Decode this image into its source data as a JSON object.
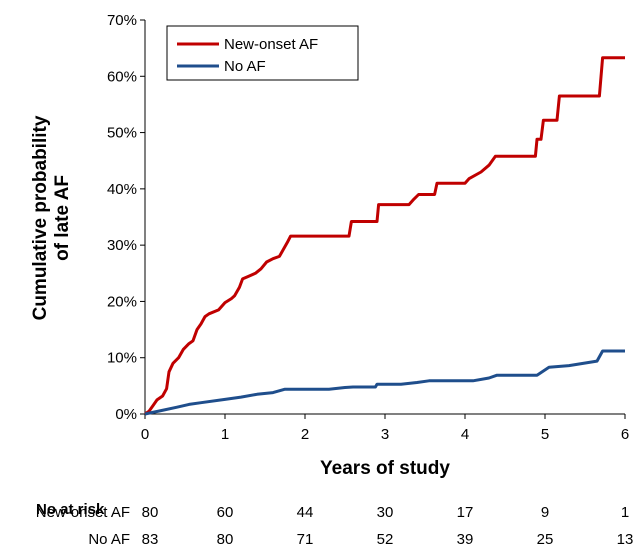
{
  "chart_data": {
    "type": "line",
    "title": "",
    "xlabel": "Years of study",
    "ylabel": "Cumulative probability of late AF",
    "ylabel_lines": [
      "Cumulative probability",
      "of late AF"
    ],
    "xlim": [
      0,
      6
    ],
    "ylim": [
      0,
      70
    ],
    "xticks": [
      "0",
      "1",
      "2",
      "3",
      "4",
      "5",
      "6"
    ],
    "yticks": [
      "0%",
      "10%",
      "20%",
      "30%",
      "40%",
      "50%",
      "60%",
      "70%"
    ],
    "grid": false,
    "legend_position": "top-left",
    "series": [
      {
        "name": "New-onset AF",
        "color": "#c00000",
        "step": true,
        "points": [
          [
            0,
            0
          ],
          [
            0.05,
            0.5
          ],
          [
            0.1,
            1.5
          ],
          [
            0.15,
            2.5
          ],
          [
            0.22,
            3.2
          ],
          [
            0.27,
            4.5
          ],
          [
            0.3,
            7.5
          ],
          [
            0.35,
            9
          ],
          [
            0.42,
            10
          ],
          [
            0.48,
            11.5
          ],
          [
            0.55,
            12.5
          ],
          [
            0.6,
            13
          ],
          [
            0.65,
            15
          ],
          [
            0.7,
            16
          ],
          [
            0.75,
            17.3
          ],
          [
            0.8,
            17.8
          ],
          [
            0.92,
            18.5
          ],
          [
            1.0,
            19.8
          ],
          [
            1.08,
            20.5
          ],
          [
            1.12,
            21
          ],
          [
            1.18,
            22.5
          ],
          [
            1.22,
            24
          ],
          [
            1.3,
            24.5
          ],
          [
            1.38,
            25
          ],
          [
            1.45,
            25.8
          ],
          [
            1.52,
            27
          ],
          [
            1.6,
            27.6
          ],
          [
            1.68,
            28
          ],
          [
            1.72,
            29
          ],
          [
            1.78,
            30.5
          ],
          [
            1.82,
            31.6
          ],
          [
            2.55,
            31.6
          ],
          [
            2.58,
            34.2
          ],
          [
            2.9,
            34.2
          ],
          [
            2.92,
            37.2
          ],
          [
            3.3,
            37.2
          ],
          [
            3.35,
            38
          ],
          [
            3.42,
            39
          ],
          [
            3.62,
            39
          ],
          [
            3.65,
            41
          ],
          [
            4.0,
            41
          ],
          [
            4.05,
            41.8
          ],
          [
            4.2,
            43
          ],
          [
            4.3,
            44.2
          ],
          [
            4.38,
            45.8
          ],
          [
            4.88,
            45.8
          ],
          [
            4.9,
            48.8
          ],
          [
            4.95,
            48.8
          ],
          [
            4.98,
            52.2
          ],
          [
            5.15,
            52.2
          ],
          [
            5.18,
            56.5
          ],
          [
            5.68,
            56.5
          ],
          [
            5.72,
            63.3
          ],
          [
            6.0,
            63.3
          ]
        ]
      },
      {
        "name": "No AF",
        "color": "#1f4e8c",
        "step": true,
        "points": [
          [
            0,
            0
          ],
          [
            0.2,
            0.6
          ],
          [
            0.4,
            1.2
          ],
          [
            0.55,
            1.7
          ],
          [
            0.7,
            2.0
          ],
          [
            1.0,
            2.6
          ],
          [
            1.2,
            3.0
          ],
          [
            1.4,
            3.5
          ],
          [
            1.6,
            3.8
          ],
          [
            1.75,
            4.4
          ],
          [
            2.3,
            4.4
          ],
          [
            2.5,
            4.7
          ],
          [
            2.6,
            4.8
          ],
          [
            2.88,
            4.8
          ],
          [
            2.9,
            5.3
          ],
          [
            3.2,
            5.3
          ],
          [
            3.4,
            5.6
          ],
          [
            3.55,
            5.9
          ],
          [
            4.1,
            5.9
          ],
          [
            4.3,
            6.4
          ],
          [
            4.4,
            6.9
          ],
          [
            4.9,
            6.9
          ],
          [
            5.05,
            8.3
          ],
          [
            5.3,
            8.6
          ],
          [
            5.65,
            9.4
          ],
          [
            5.72,
            11.2
          ],
          [
            6.0,
            11.2
          ]
        ]
      }
    ],
    "risk_table": {
      "header": "No at risk",
      "rows": [
        {
          "label": "New-onset AF",
          "values": [
            "80",
            "60",
            "44",
            "30",
            "17",
            "9",
            "1"
          ]
        },
        {
          "label": "No AF",
          "values": [
            "83",
            "80",
            "71",
            "52",
            "39",
            "25",
            "13"
          ]
        }
      ]
    }
  }
}
